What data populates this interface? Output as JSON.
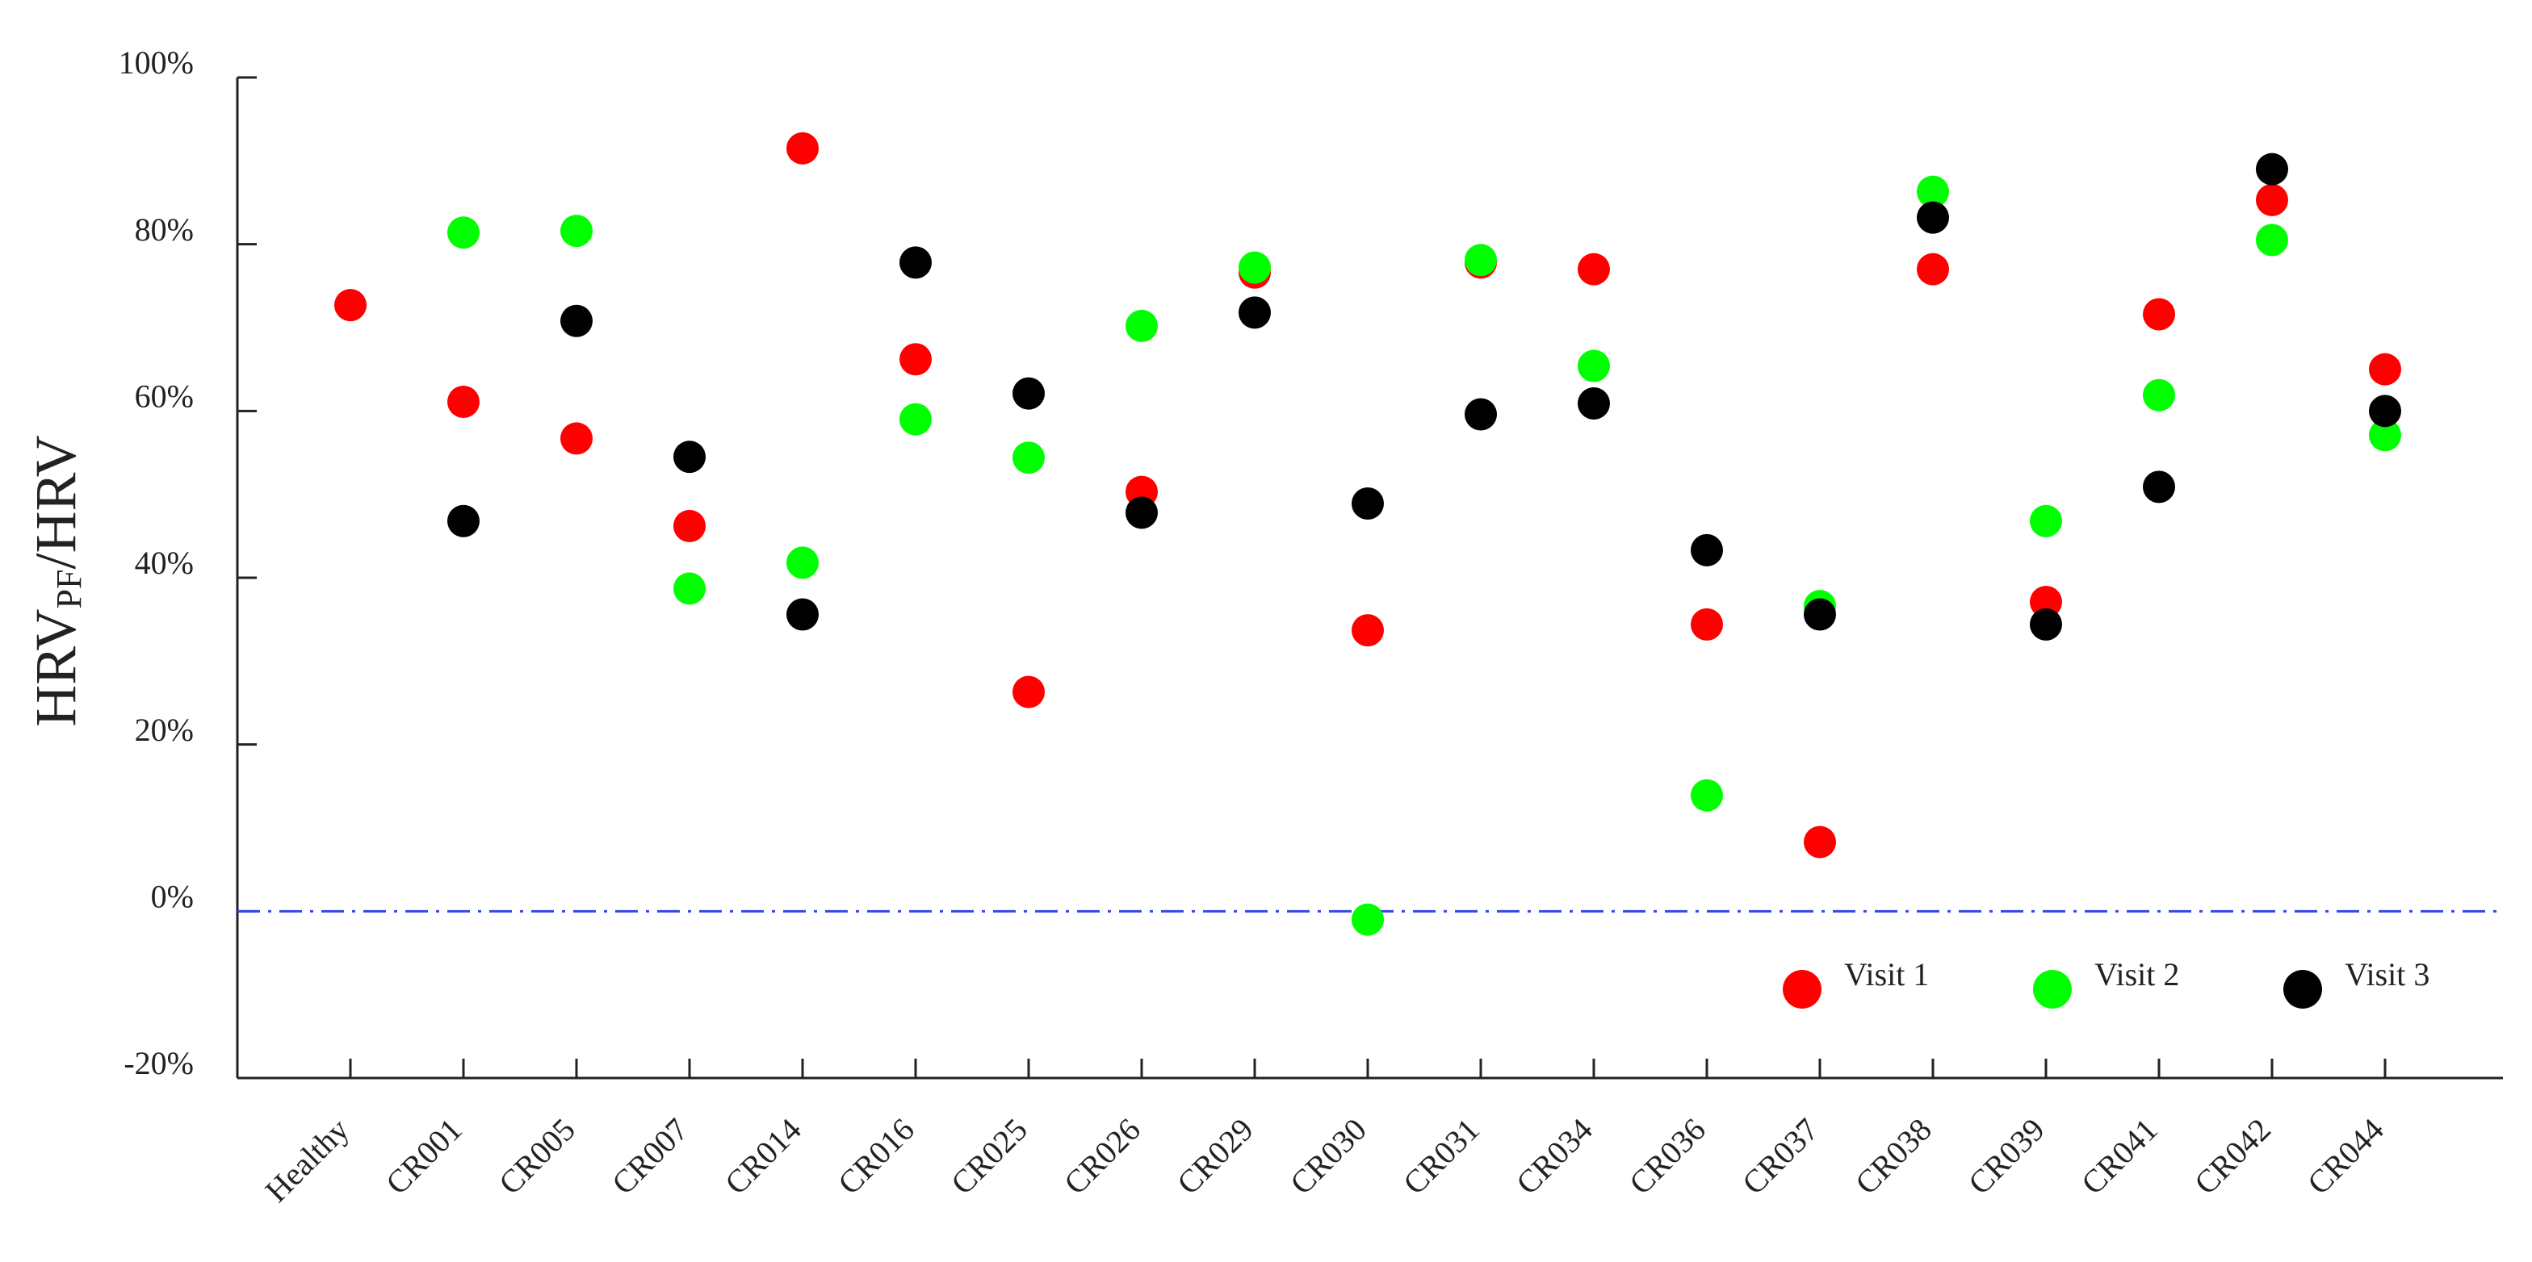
{
  "chart_data": {
    "type": "scatter",
    "y_label": {
      "main": "HRV",
      "sub": "PF",
      "rest": "/HRV"
    },
    "categories": [
      "Healthy",
      "CR001",
      "CR005",
      "CR007",
      "CR014",
      "CR016",
      "CR025",
      "CR026",
      "CR029",
      "CR030",
      "CR031",
      "CR034",
      "CR036",
      "CR037",
      "CR038",
      "CR039",
      "CR041",
      "CR042",
      "CR044"
    ],
    "series": [
      {
        "name": "Visit 1",
        "color": "#ff0000",
        "values": [
          72.7,
          61.1,
          56.7,
          46.2,
          91.5,
          66.2,
          26.3,
          50.3,
          76.6,
          33.7,
          77.8,
          77.0,
          34.4,
          8.3,
          77.0,
          37.1,
          71.6,
          85.3,
          65.0
        ]
      },
      {
        "name": "Visit 2",
        "color": "#00ff00",
        "values": [
          null,
          81.4,
          81.6,
          38.7,
          41.8,
          59.0,
          54.4,
          70.2,
          77.2,
          -1.0,
          78.1,
          65.4,
          13.9,
          36.6,
          86.3,
          46.8,
          61.9,
          80.5,
          57.1
        ]
      },
      {
        "name": "Visit 3",
        "color": "#000000",
        "values": [
          null,
          46.8,
          70.8,
          54.5,
          35.6,
          77.8,
          62.1,
          47.8,
          71.8,
          48.9,
          59.6,
          60.9,
          43.3,
          35.6,
          83.2,
          34.4,
          50.9,
          89.0,
          60.0
        ]
      }
    ],
    "ylim": [
      -20,
      100
    ],
    "yticks": [
      {
        "value": -20,
        "label": "-20%"
      },
      {
        "value": 0,
        "label": "0%"
      },
      {
        "value": 20,
        "label": "20%"
      },
      {
        "value": 40,
        "label": "40%"
      },
      {
        "value": 60,
        "label": "60%"
      },
      {
        "value": 80,
        "label": "80%"
      },
      {
        "value": 100,
        "label": "100%"
      }
    ],
    "reference_line": {
      "value": 0,
      "color": "#3344ee"
    },
    "legend": "lower right",
    "grid": false
  }
}
